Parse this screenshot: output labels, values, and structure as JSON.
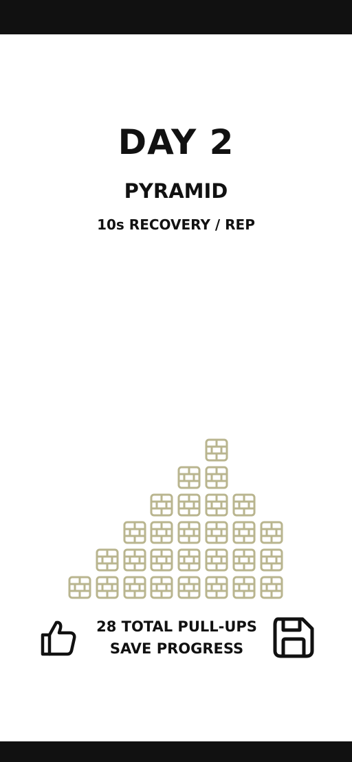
{
  "header": {
    "day_title": "DAY 2",
    "workout_name": "PYRAMID",
    "recovery_text": "10s RECOVERY / REP"
  },
  "pyramid": {
    "brick_color": "#b9b58f",
    "rows": [
      {
        "start_column": 5,
        "count": 1
      },
      {
        "start_column": 4,
        "count": 2
      },
      {
        "start_column": 3,
        "count": 4
      },
      {
        "start_column": 2,
        "count": 6
      },
      {
        "start_column": 1,
        "count": 7
      },
      {
        "start_column": 0,
        "count": 8
      }
    ]
  },
  "footer": {
    "total_label": "28 TOTAL PULL-UPS",
    "save_label": "SAVE PROGRESS",
    "like_icon": "thumbs-up-icon",
    "save_icon": "floppy-disk-icon"
  }
}
